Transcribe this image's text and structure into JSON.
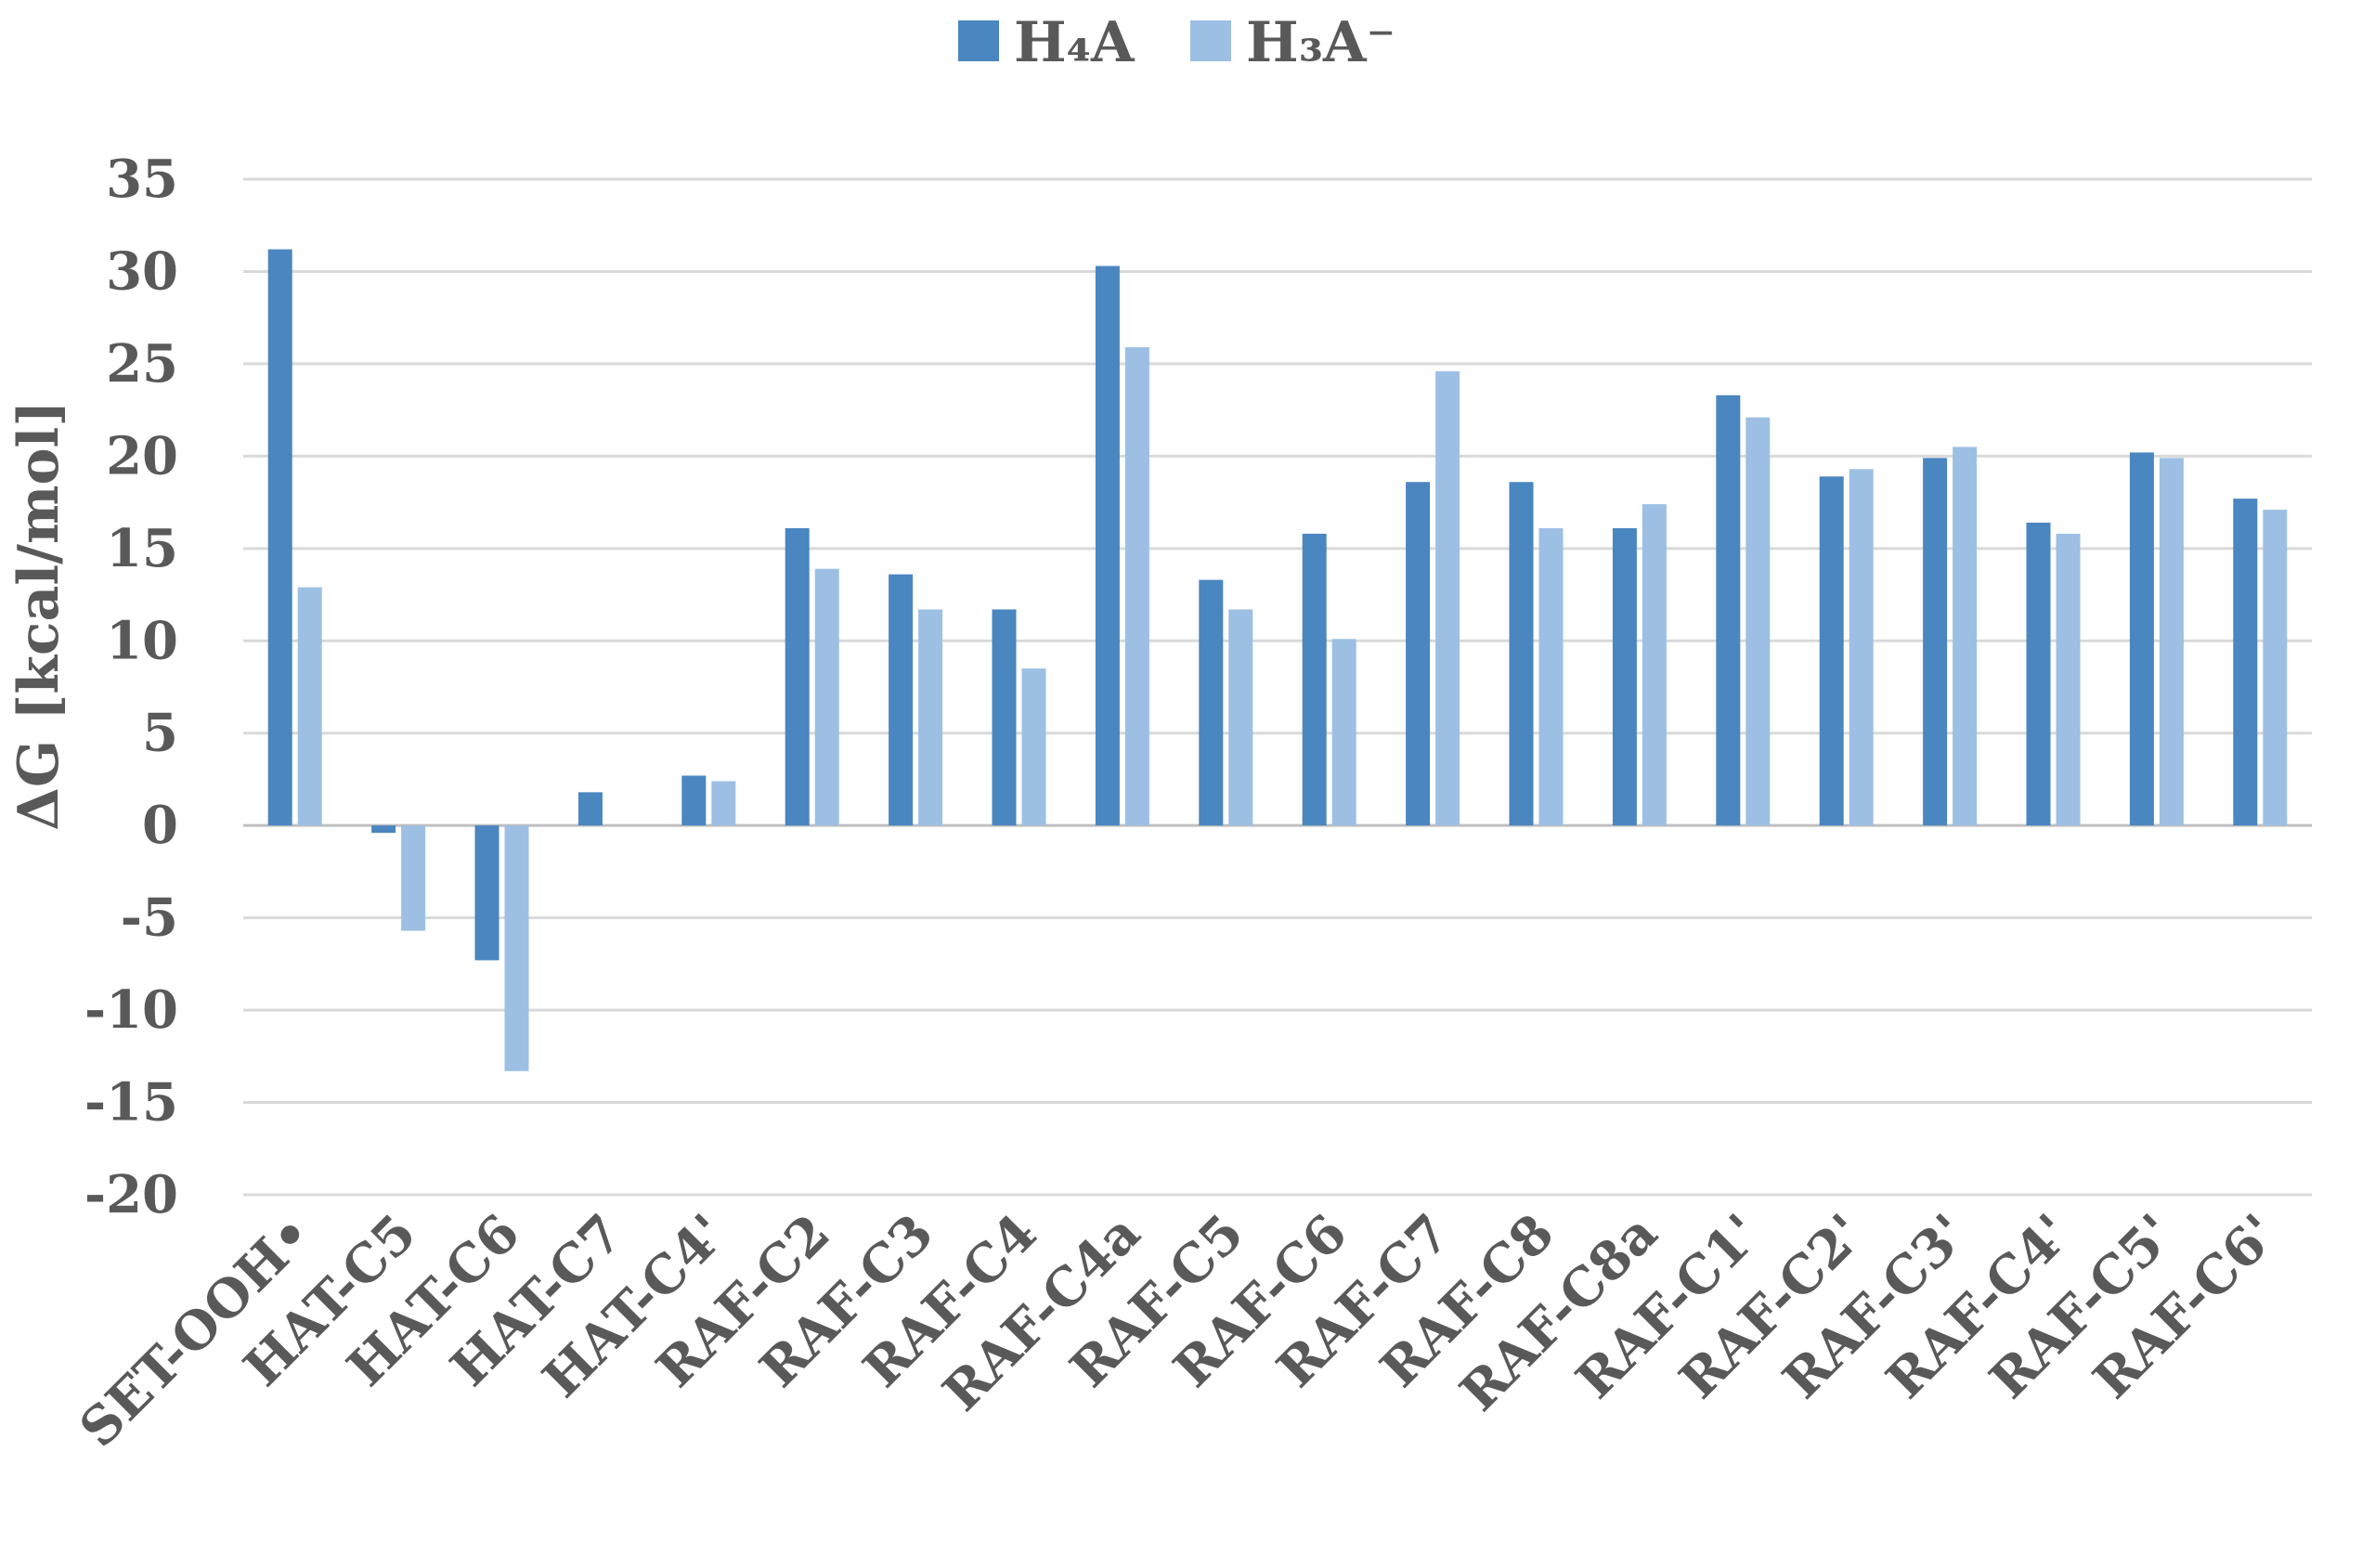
{
  "chart_data": {
    "type": "bar",
    "ylabel": "ΔG [kcal/mol]",
    "ylim": [
      -20,
      35
    ],
    "yticks": [
      35,
      30,
      25,
      20,
      15,
      10,
      5,
      0,
      -5,
      -10,
      -15,
      -20
    ],
    "grid": true,
    "legend_position": "top-center",
    "categories": [
      "SET-OOH•",
      "HAT-C5",
      "HAT-C6",
      "HAT-C7",
      "HAT-C4'",
      "RAF-C2",
      "RAF-C3",
      "RAF-C4",
      "RAF-C4a",
      "RAF-C5",
      "RAF-C6",
      "RAF-C7",
      "RAF-C8",
      "RAF-C8a",
      "RAF-C1'",
      "RAF-C2'",
      "RAF-C3'",
      "RAF-C4'",
      "RAF-C5'",
      "RAF-C6'"
    ],
    "series": [
      {
        "name": "H₄A",
        "color": "#4a86c0",
        "values": [
          31.2,
          -0.4,
          -7.3,
          1.8,
          2.7,
          16.1,
          13.6,
          11.7,
          30.3,
          13.3,
          15.8,
          18.6,
          18.6,
          16.1,
          23.3,
          18.9,
          19.9,
          16.4,
          20.2,
          17.7
        ]
      },
      {
        "name": "H₃A⁻",
        "color": "#9dbfe4",
        "values": [
          12.9,
          -5.7,
          -13.3,
          null,
          2.4,
          13.9,
          11.7,
          8.5,
          25.9,
          11.7,
          10.1,
          24.6,
          16.1,
          17.4,
          22.1,
          19.3,
          20.5,
          15.8,
          19.9,
          17.1
        ]
      }
    ]
  }
}
